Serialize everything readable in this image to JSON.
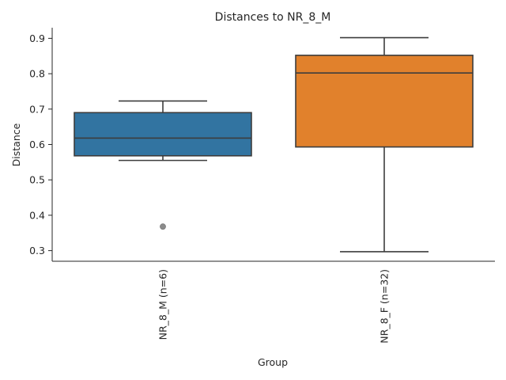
{
  "chart_data": {
    "type": "box",
    "title": "Distances to NR_8_M",
    "xlabel": "Group",
    "ylabel": "Distance",
    "ylim": [
      0.27,
      0.93
    ],
    "yticks": [
      0.3,
      0.4,
      0.5,
      0.6,
      0.7,
      0.8,
      0.9
    ],
    "grid": false,
    "categories": [
      "NR_8_M (n=6)",
      "NR_8_F (n=32)"
    ],
    "boxes": [
      {
        "name": "NR_8_M (n=6)",
        "color": "#3274a1",
        "whisker_low": 0.555,
        "q1": 0.568,
        "median": 0.618,
        "q3": 0.69,
        "whisker_high": 0.723,
        "outliers": [
          0.368
        ]
      },
      {
        "name": "NR_8_F (n=32)",
        "color": "#e1812c",
        "whisker_low": 0.297,
        "q1": 0.593,
        "median": 0.802,
        "q3": 0.852,
        "whisker_high": 0.902,
        "outliers": []
      }
    ]
  }
}
